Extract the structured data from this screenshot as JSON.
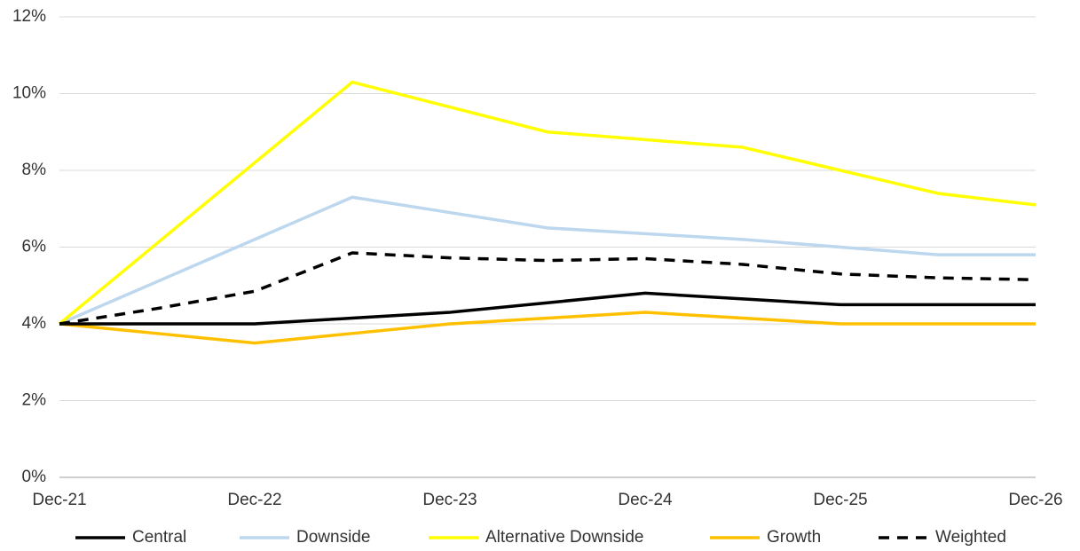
{
  "chart_data": {
    "type": "line",
    "categories": [
      "Dec-21",
      null,
      "Dec-22",
      null,
      "Dec-23",
      null,
      "Dec-24",
      null,
      "Dec-25",
      null,
      "Dec-26"
    ],
    "series": [
      {
        "name": "Central",
        "color": "#000000",
        "values": [
          4,
          4,
          4,
          4.15,
          4.3,
          4.55,
          4.8,
          4.65,
          4.5,
          4.5,
          4.5
        ]
      },
      {
        "name": "Downside",
        "color": "#bdd7ee",
        "values": [
          4,
          5.1,
          6.2,
          7.3,
          6.9,
          6.5,
          6.35,
          6.2,
          6.0,
          5.8,
          5.8
        ]
      },
      {
        "name": "Alternative Downside",
        "color": "#ffff00",
        "values": [
          4,
          6.1,
          8.2,
          10.3,
          9.65,
          9.0,
          8.8,
          8.6,
          8.0,
          7.4,
          7.1
        ]
      },
      {
        "name": "Growth",
        "color": "#ffc000",
        "values": [
          4,
          3.75,
          3.5,
          3.75,
          4.0,
          4.15,
          4.3,
          4.15,
          4.0,
          4.0,
          4.0
        ]
      },
      {
        "name": "Weighted",
        "color": "#000000",
        "dashed": true,
        "values": [
          4,
          4.4,
          4.85,
          5.85,
          5.72,
          5.65,
          5.7,
          5.55,
          5.3,
          5.2,
          5.15
        ]
      }
    ],
    "ylim": [
      0,
      12
    ],
    "yticks": [
      {
        "value": 0,
        "label": "0%"
      },
      {
        "value": 2,
        "label": "2%"
      },
      {
        "value": 4,
        "label": "4%"
      },
      {
        "value": 6,
        "label": "6%"
      },
      {
        "value": 8,
        "label": "8%"
      },
      {
        "value": 10,
        "label": "10%"
      },
      {
        "value": 12,
        "label": "12%"
      }
    ],
    "grid": true,
    "legend": "bottom"
  }
}
